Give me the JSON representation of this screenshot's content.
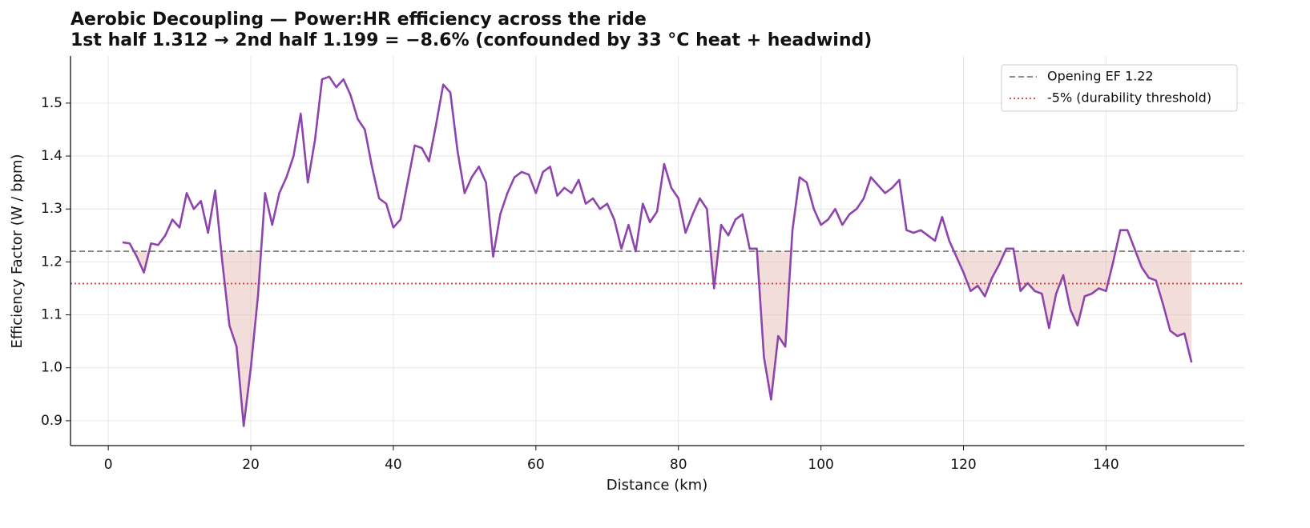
{
  "chart_data": {
    "type": "line",
    "title": "Aerobic Decoupling — Power:HR efficiency across the ride",
    "subtitle": "1st half 1.312 → 2nd half 1.199 = −8.6% (confounded by 33 °C heat + headwind)",
    "xlabel": "Distance (km)",
    "ylabel": "Efficiency Factor (W / bpm)",
    "x": [
      2,
      3,
      4,
      5,
      6,
      7,
      8,
      9,
      10,
      11,
      12,
      13,
      14,
      15,
      16,
      17,
      18,
      19,
      20,
      21,
      22,
      23,
      24,
      25,
      26,
      27,
      28,
      29,
      30,
      31,
      32,
      33,
      34,
      35,
      36,
      37,
      38,
      39,
      40,
      41,
      42,
      43,
      44,
      45,
      46,
      47,
      48,
      49,
      50,
      51,
      52,
      53,
      54,
      55,
      56,
      57,
      58,
      59,
      60,
      61,
      62,
      63,
      64,
      65,
      66,
      67,
      68,
      69,
      70,
      71,
      72,
      73,
      74,
      75,
      76,
      77,
      78,
      79,
      80,
      81,
      82,
      83,
      84,
      85,
      86,
      87,
      88,
      89,
      90,
      91,
      92,
      93,
      94,
      95,
      96,
      97,
      98,
      99,
      100,
      101,
      102,
      103,
      104,
      105,
      106,
      107,
      108,
      109,
      110,
      111,
      112,
      113,
      114,
      115,
      116,
      117,
      118,
      119,
      120,
      121,
      122,
      123,
      124,
      125,
      126,
      127,
      128,
      129,
      130,
      131,
      132,
      133,
      134,
      135,
      136,
      137,
      138,
      139,
      140,
      141,
      142,
      143,
      144,
      145,
      146,
      147,
      148,
      149,
      150,
      151,
      152
    ],
    "series": [
      {
        "name": "EF",
        "color": "#8e44ad",
        "values": [
          1.237,
          1.235,
          1.21,
          1.18,
          1.235,
          1.232,
          1.25,
          1.28,
          1.265,
          1.33,
          1.3,
          1.315,
          1.255,
          1.335,
          1.2,
          1.08,
          1.04,
          0.89,
          1.0,
          1.135,
          1.33,
          1.27,
          1.33,
          1.36,
          1.4,
          1.48,
          1.35,
          1.43,
          1.545,
          1.55,
          1.53,
          1.545,
          1.515,
          1.47,
          1.45,
          1.38,
          1.32,
          1.31,
          1.265,
          1.28,
          1.35,
          1.42,
          1.415,
          1.39,
          1.46,
          1.535,
          1.52,
          1.41,
          1.33,
          1.36,
          1.38,
          1.35,
          1.21,
          1.29,
          1.33,
          1.36,
          1.37,
          1.365,
          1.33,
          1.37,
          1.38,
          1.325,
          1.34,
          1.33,
          1.355,
          1.31,
          1.32,
          1.3,
          1.31,
          1.28,
          1.225,
          1.27,
          1.22,
          1.31,
          1.275,
          1.295,
          1.385,
          1.34,
          1.32,
          1.255,
          1.29,
          1.32,
          1.3,
          1.15,
          1.27,
          1.25,
          1.28,
          1.29,
          1.225,
          1.225,
          1.02,
          0.94,
          1.06,
          1.04,
          1.26,
          1.36,
          1.35,
          1.3,
          1.27,
          1.28,
          1.3,
          1.27,
          1.29,
          1.3,
          1.32,
          1.36,
          1.345,
          1.33,
          1.34,
          1.355,
          1.26,
          1.255,
          1.26,
          1.25,
          1.24,
          1.285,
          1.24,
          1.21,
          1.18,
          1.145,
          1.155,
          1.135,
          1.17,
          1.195,
          1.225,
          1.225,
          1.145,
          1.16,
          1.145,
          1.14,
          1.075,
          1.14,
          1.175,
          1.11,
          1.08,
          1.135,
          1.14,
          1.15,
          1.145,
          1.2,
          1.26,
          1.26,
          1.225,
          1.19,
          1.17,
          1.165,
          1.12,
          1.07,
          1.06,
          1.065,
          1.01
        ]
      }
    ],
    "reference_lines": [
      {
        "name": "Opening EF 1.22",
        "value": 1.22,
        "color": "#7f7f7f",
        "style": "dashed"
      },
      {
        "name": "-5% (durability threshold)",
        "value": 1.159,
        "color": "#d0392b",
        "style": "dotted"
      }
    ],
    "shade_below_reference": true,
    "shade_color": "#e5b3ae",
    "xlim": [
      -5.3,
      159.4
    ],
    "xticks": [
      0,
      20,
      40,
      60,
      80,
      100,
      120,
      140
    ],
    "ylim": [
      0.853,
      1.589
    ],
    "yticks": [
      0.9,
      {
        "value": 1,
        "label": "1.0"
      },
      1.1,
      1.2,
      1.3,
      1.4,
      1.5
    ],
    "grid": true,
    "legend": "upper right"
  }
}
